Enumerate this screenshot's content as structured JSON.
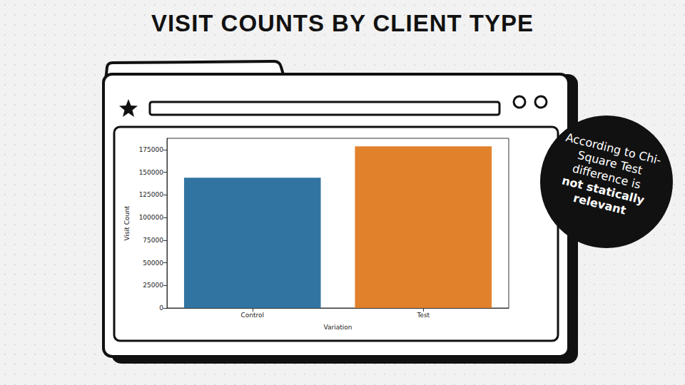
{
  "chart_data": {
    "type": "bar",
    "title": "VISIT COUNTS BY CLIENT TYPE",
    "x_label": "Variation",
    "y_label": "Visit Count",
    "categories": [
      "Control",
      "Test"
    ],
    "values": [
      144000,
      178700
    ],
    "colors": [
      "#3274a1",
      "#e1812c"
    ],
    "ylim": [
      0,
      187500
    ],
    "yticks": [
      0,
      25000,
      50000,
      75000,
      100000,
      125000,
      150000,
      175000
    ],
    "grid": false,
    "annotation": [
      "According to Chi-Square Test difference is",
      "not statically relevant"
    ]
  }
}
